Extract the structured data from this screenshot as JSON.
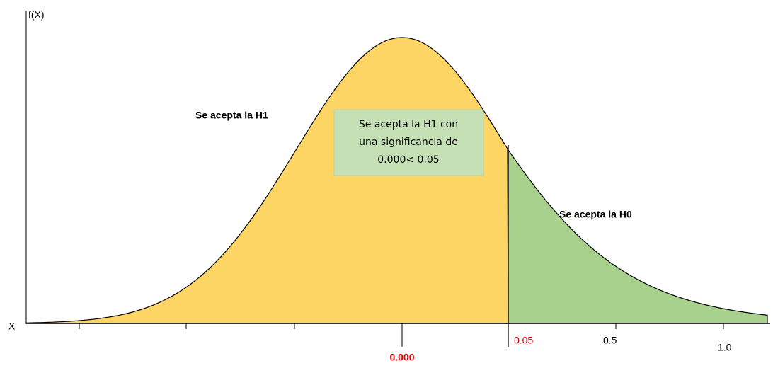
{
  "axis": {
    "y_label": "f(X)",
    "x_label": "X"
  },
  "regions": {
    "h1": "Se acepta la H1",
    "h0": "Se acepta la H0"
  },
  "note": {
    "lines": [
      "Se acepta la H1 con",
      "una significancia de",
      "0.000< 0.05"
    ]
  },
  "ticks": {
    "alpha": "0.05",
    "half": "0.5",
    "one": "1.0",
    "sig": "0.000"
  }
}
